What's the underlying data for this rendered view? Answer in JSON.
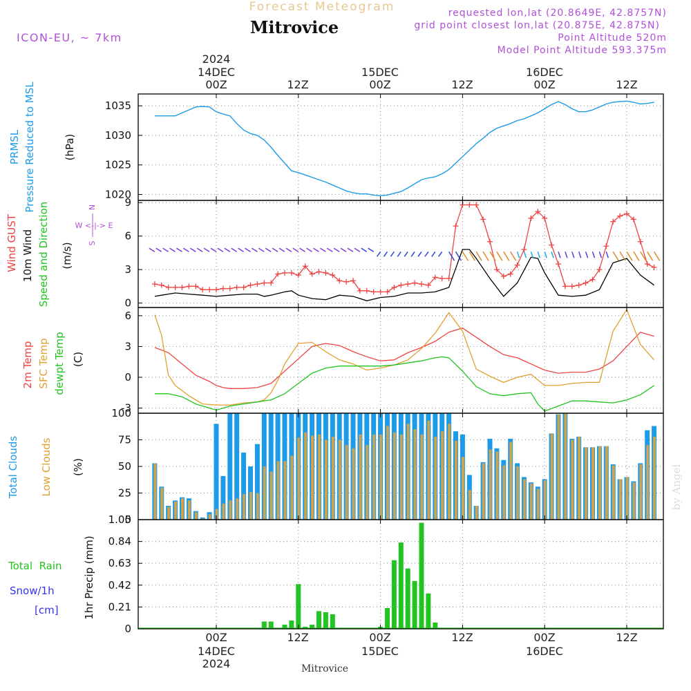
{
  "header": {
    "title": "Mitrovice",
    "subtitle": "Forecast Meteogram",
    "model": "ICON-EU, ~ 7km",
    "info_lines": [
      "requested lon,lat (20.8649E, 42.8757N)",
      "grid point closest lon,lat (20.875E, 42.875N)",
      "Point Altitude 520m",
      "Model Point Altitude 593.375m"
    ],
    "footer_location": "Mitrovice",
    "watermark": "by Angel"
  },
  "time_axis": {
    "top_year": "2024",
    "top_dates": [
      "14DEC",
      "15DEC",
      "16DEC"
    ],
    "bottom_year": "2024",
    "bottom_dates": [
      "14DEC",
      "15DEC",
      "16DEC"
    ],
    "tick_labels": [
      "00Z",
      "12Z",
      "00Z",
      "12Z",
      "00Z",
      "12Z"
    ]
  },
  "colors": {
    "pressure": "#1e9be8",
    "gust": "#ee4444",
    "wind": "#000000",
    "t2m": "#ee4444",
    "sfc": "#e0a030",
    "dewpt": "#22c322",
    "total_clouds": "#1e9be8",
    "low_clouds": "#caa450",
    "rain": "#22c322",
    "snow": "#3333ee",
    "purple": "#b050d8"
  },
  "panels": {
    "pressure": {
      "label1": "PRMSL",
      "label2": "Pressure Reduced to MSL",
      "unit": "(hPa)"
    },
    "wind": {
      "label1": "Wind GUST",
      "label2": "10m Wind",
      "label3": "Speed and Direction",
      "unit": "(m/s)",
      "compass_n": "N",
      "compass_s": "S",
      "compass_we": "W <-|-> E"
    },
    "temp": {
      "label1": "2m Temp",
      "label2": "SFC Temp",
      "label3": "dewpt Temp",
      "unit": "(C)"
    },
    "clouds": {
      "label1": "Total Clouds",
      "label2": "Low Clouds",
      "unit": "(%)"
    },
    "precip": {
      "label1": "Total  Rain",
      "label2": "Snow/1h",
      "label3": "[cm]",
      "axis": "1hr Precip (mm)"
    }
  },
  "chart_data": [
    {
      "type": "line",
      "ylim": [
        1019,
        1037
      ],
      "y_ticks": [
        "1020",
        "1025",
        "1030",
        "1035"
      ],
      "series": [
        {
          "name": "PRMSL",
          "x": [
            -9,
            -6,
            -5,
            -3,
            -2,
            -1,
            0,
            1,
            2,
            3,
            4,
            5,
            6,
            7,
            8,
            9,
            10,
            11,
            12,
            13,
            14,
            15,
            16,
            17,
            18,
            19,
            20,
            21,
            22,
            23,
            24,
            25,
            26,
            27,
            28,
            29,
            30,
            31,
            32,
            33,
            34,
            35,
            36,
            37,
            38,
            39,
            40,
            41,
            42,
            43,
            44,
            45,
            46,
            47,
            48,
            49,
            50,
            51,
            52,
            53,
            54,
            55,
            56,
            57,
            58,
            59,
            60,
            61,
            62,
            63,
            64
          ],
          "values": [
            1033.3,
            1033.3,
            1033.8,
            1034.8,
            1034.9,
            1034.8,
            1034.0,
            1033.6,
            1033.3,
            1032.0,
            1030.9,
            1030.3,
            1030.0,
            1029.2,
            1028.0,
            1026.6,
            1025.3,
            1024.0,
            1023.7,
            1023.3,
            1022.9,
            1022.5,
            1022.1,
            1021.6,
            1021.1,
            1020.6,
            1020.3,
            1020.1,
            1020.1,
            1019.9,
            1019.8,
            1019.9,
            1020.2,
            1020.5,
            1021.1,
            1021.8,
            1022.5,
            1022.8,
            1023.0,
            1023.5,
            1024.2,
            1025.3,
            1026.4,
            1027.5,
            1028.6,
            1029.5,
            1030.5,
            1031.2,
            1031.6,
            1032.0,
            1032.5,
            1032.8,
            1033.3,
            1033.8,
            1034.5,
            1035.2,
            1035.7,
            1035.2,
            1034.5,
            1034.0,
            1034.0,
            1034.3,
            1034.8,
            1035.3,
            1035.6,
            1035.7,
            1035.8,
            1035.6,
            1035.3,
            1035.4,
            1035.6
          ]
        }
      ]
    },
    {
      "type": "line",
      "ylim": [
        -0.4,
        9.2
      ],
      "y_ticks": [
        "0",
        "3",
        "6",
        "9"
      ],
      "series": [
        {
          "name": "Wind GUST",
          "x": [
            -9,
            -8,
            -7,
            -6,
            -5,
            -4,
            -3,
            -2,
            -1,
            0,
            1,
            2,
            3,
            4,
            5,
            6,
            7,
            8,
            9,
            10,
            11,
            12,
            13,
            14,
            15,
            16,
            17,
            18,
            19,
            20,
            21,
            22,
            23,
            24,
            25,
            26,
            27,
            28,
            29,
            30,
            31,
            32,
            33,
            34,
            35,
            36,
            37,
            38,
            39,
            40,
            41,
            42,
            43,
            44,
            45,
            46,
            47,
            48,
            49,
            50,
            51,
            52,
            53,
            54,
            55,
            56,
            57,
            58,
            59,
            60,
            61,
            62,
            63,
            64
          ],
          "values": [
            1.7,
            1.6,
            1.4,
            1.4,
            1.4,
            1.5,
            1.5,
            1.2,
            1.2,
            1.2,
            1.3,
            1.3,
            1.4,
            1.4,
            1.6,
            1.7,
            1.8,
            1.8,
            2.6,
            2.7,
            2.7,
            2.5,
            3.3,
            2.6,
            2.8,
            2.7,
            2.5,
            2.0,
            1.9,
            2.0,
            1.1,
            1.1,
            1.0,
            1.0,
            1.0,
            1.4,
            1.6,
            1.7,
            1.8,
            1.7,
            1.6,
            2.3,
            2.2,
            2.2,
            6.9,
            8.8,
            8.8,
            8.8,
            7.5,
            5.5,
            3.0,
            2.4,
            2.6,
            3.4,
            4.8,
            7.6,
            8.2,
            7.6,
            5.2,
            3.5,
            1.5,
            1.5,
            1.6,
            1.8,
            2.1,
            3.0,
            5.1,
            7.3,
            7.8,
            8.0,
            7.5,
            5.5,
            3.5,
            3.2
          ]
        },
        {
          "name": "10m Wind",
          "x": [
            -9,
            -8,
            -6,
            -4,
            -2,
            0,
            2,
            4,
            6,
            7,
            8,
            10,
            11,
            12,
            14,
            16,
            18,
            20,
            22,
            24,
            26,
            28,
            30,
            32,
            34,
            36,
            37,
            38,
            40,
            42,
            44,
            46,
            47,
            48,
            50,
            52,
            54,
            56,
            58,
            60,
            62,
            64
          ],
          "values": [
            0.6,
            0.7,
            0.9,
            0.8,
            0.7,
            0.6,
            0.7,
            0.8,
            0.8,
            0.6,
            0.7,
            1.0,
            1.1,
            0.7,
            0.4,
            0.3,
            0.7,
            0.6,
            0.2,
            0.5,
            0.6,
            0.9,
            0.9,
            1.0,
            1.4,
            4.8,
            4.8,
            4.0,
            2.2,
            0.6,
            1.8,
            4.1,
            4.0,
            2.7,
            0.7,
            0.6,
            0.7,
            1.2,
            3.6,
            4.0,
            2.5,
            1.6
          ]
        }
      ]
    },
    {
      "type": "line",
      "ylim": [
        -3.5,
        6.8
      ],
      "y_ticks": [
        "-3",
        "0",
        "3",
        "6"
      ],
      "series": [
        {
          "name": "2m Temp",
          "x": [
            -9,
            -7,
            -5,
            -3,
            -1,
            0,
            1,
            2,
            4,
            6,
            8,
            10,
            12,
            14,
            16,
            18,
            20,
            22,
            24,
            26,
            28,
            30,
            32,
            34,
            36,
            38,
            40,
            42,
            44,
            46,
            48,
            50,
            52,
            54,
            56,
            58,
            60,
            62,
            64
          ],
          "values": [
            2.9,
            2.4,
            1.3,
            0.2,
            -0.4,
            -0.8,
            -1.0,
            -1.1,
            -1.1,
            -1.0,
            -0.6,
            0.6,
            1.8,
            3.0,
            3.3,
            3.1,
            2.5,
            2.0,
            1.6,
            1.7,
            2.4,
            2.9,
            3.5,
            4.4,
            4.8,
            3.9,
            3.0,
            2.2,
            1.9,
            1.3,
            0.7,
            0.4,
            0.5,
            0.5,
            0.8,
            1.6,
            3.0,
            4.4,
            4.0
          ]
        },
        {
          "name": "SFC Temp",
          "x": [
            -9,
            -8,
            -7,
            -6,
            -4,
            -2,
            0,
            2,
            4,
            6,
            7,
            8,
            9,
            10,
            12,
            14,
            16,
            18,
            20,
            22,
            24,
            26,
            28,
            30,
            32,
            34,
            36,
            38,
            40,
            42,
            44,
            46,
            48,
            50,
            52,
            54,
            56,
            58,
            60,
            62,
            64
          ],
          "values": [
            6.1,
            4.1,
            0.2,
            -0.8,
            -1.8,
            -2.6,
            -2.7,
            -2.7,
            -2.5,
            -2.4,
            -2.2,
            -1.5,
            -0.3,
            1.3,
            3.3,
            3.4,
            2.5,
            1.7,
            1.3,
            0.7,
            0.9,
            1.2,
            1.7,
            2.8,
            4.3,
            6.3,
            4.5,
            0.8,
            0.1,
            -0.5,
            0.0,
            0.3,
            -0.8,
            -0.8,
            -0.6,
            -0.5,
            -0.5,
            4.5,
            6.6,
            3.2,
            1.7
          ]
        },
        {
          "name": "dewpt Temp",
          "x": [
            -9,
            -7,
            -5,
            -3,
            -1,
            0,
            1,
            2,
            4,
            6,
            8,
            10,
            12,
            14,
            16,
            18,
            20,
            22,
            24,
            26,
            28,
            30,
            32,
            33,
            34,
            36,
            38,
            40,
            42,
            44,
            46,
            47,
            48,
            50,
            52,
            54,
            56,
            58,
            60,
            62,
            64
          ],
          "values": [
            -1.6,
            -1.6,
            -1.9,
            -2.6,
            -3.0,
            -3.2,
            -3.0,
            -2.8,
            -2.6,
            -2.4,
            -2.2,
            -1.6,
            -0.6,
            0.4,
            0.9,
            1.1,
            1.1,
            1.1,
            1.1,
            1.2,
            1.4,
            1.6,
            1.9,
            2.0,
            1.9,
            0.6,
            -0.9,
            -1.6,
            -1.8,
            -1.6,
            -1.5,
            -2.6,
            -3.3,
            -2.8,
            -2.3,
            -2.3,
            -2.4,
            -2.5,
            -2.2,
            -1.7,
            -0.8
          ]
        }
      ]
    },
    {
      "type": "bar",
      "ylim": [
        0,
        100
      ],
      "y_ticks": [
        "0",
        "25",
        "50",
        "75",
        "100"
      ],
      "x": [
        -9,
        -8,
        -7,
        -6,
        -5,
        -4,
        -3,
        -2,
        -1,
        0,
        1,
        2,
        3,
        4,
        5,
        6,
        7,
        8,
        9,
        10,
        11,
        12,
        13,
        14,
        15,
        16,
        17,
        18,
        19,
        20,
        21,
        22,
        23,
        24,
        25,
        26,
        27,
        28,
        29,
        30,
        31,
        32,
        33,
        34,
        35,
        36,
        37,
        38,
        39,
        40,
        41,
        42,
        43,
        44,
        45,
        46,
        47,
        48,
        49,
        50,
        51,
        52,
        53,
        54,
        55,
        56,
        57,
        58,
        59,
        60,
        61,
        62,
        63,
        64
      ],
      "series": [
        {
          "name": "Total Clouds",
          "values": [
            53,
            31,
            13,
            18,
            21,
            20,
            8,
            2,
            7,
            90,
            41,
            100,
            100,
            63,
            50,
            71,
            100,
            100,
            100,
            100,
            100,
            100,
            100,
            100,
            100,
            100,
            100,
            100,
            100,
            100,
            100,
            100,
            100,
            100,
            100,
            100,
            100,
            100,
            100,
            100,
            100,
            100,
            100,
            100,
            83,
            80,
            42,
            13,
            54,
            76,
            67,
            56,
            76,
            53,
            40,
            35,
            31,
            38,
            81,
            99,
            100,
            76,
            78,
            68,
            68,
            69,
            69,
            52,
            38,
            40,
            36,
            53,
            84,
            88
          ]
        },
        {
          "name": "Low Clouds",
          "values": [
            53,
            30,
            12,
            17,
            20,
            18,
            7,
            1,
            5,
            10,
            15,
            18,
            20,
            24,
            26,
            25,
            50,
            45,
            55,
            55,
            60,
            77,
            82,
            79,
            80,
            75,
            78,
            75,
            70,
            67,
            80,
            70,
            80,
            80,
            88,
            82,
            80,
            90,
            85,
            80,
            93,
            78,
            83,
            90,
            74,
            59,
            28,
            13,
            53,
            66,
            64,
            51,
            73,
            50,
            38,
            34,
            29,
            37,
            81,
            99,
            100,
            75,
            78,
            68,
            68,
            69,
            69,
            51,
            38,
            40,
            35,
            52,
            70,
            78
          ]
        }
      ]
    },
    {
      "type": "bar",
      "ylim": [
        0,
        1.05
      ],
      "y_ticks": [
        "0",
        "0.21",
        "0.42",
        "0.63",
        "0.84",
        "1.05"
      ],
      "series": [
        {
          "name": "Total Rain",
          "x": [
            7,
            8,
            9,
            10,
            11,
            12,
            13,
            14,
            15,
            16,
            17,
            18,
            24,
            25,
            26,
            27,
            28,
            29,
            30,
            31,
            32,
            33
          ],
          "values": [
            0.07,
            0.07,
            0.01,
            0.04,
            0.08,
            0.43,
            0.02,
            0.04,
            0.17,
            0.16,
            0.14,
            0.01,
            0.02,
            0.2,
            0.66,
            0.83,
            0.58,
            0.46,
            1.02,
            0.34,
            0.06,
            0.01
          ]
        }
      ]
    }
  ]
}
